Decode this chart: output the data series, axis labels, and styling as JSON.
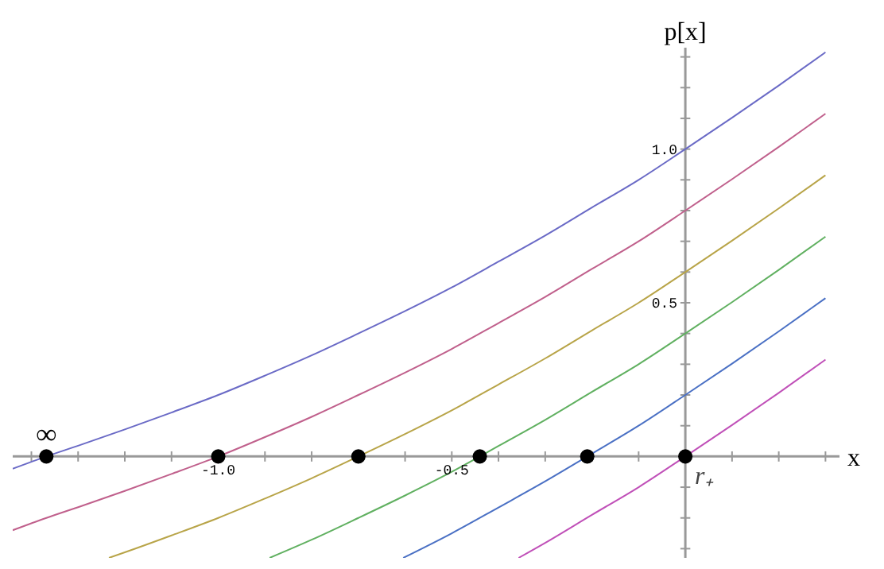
{
  "chart_data": {
    "type": "line",
    "xlabel": "x",
    "ylabel": "p[x]",
    "xlim": [
      -1.44,
      0.33
    ],
    "ylim": [
      -0.33,
      1.33
    ],
    "xticks": [
      {
        "value": -1.4,
        "label": null
      },
      {
        "value": -1.3,
        "label": null
      },
      {
        "value": -1.2,
        "label": null
      },
      {
        "value": -1.1,
        "label": null
      },
      {
        "value": -1.0,
        "label": "-1.0"
      },
      {
        "value": -0.9,
        "label": null
      },
      {
        "value": -0.8,
        "label": null
      },
      {
        "value": -0.7,
        "label": null
      },
      {
        "value": -0.6,
        "label": null
      },
      {
        "value": -0.5,
        "label": "-0.5"
      },
      {
        "value": -0.4,
        "label": null
      },
      {
        "value": -0.3,
        "label": null
      },
      {
        "value": -0.2,
        "label": null
      },
      {
        "value": -0.1,
        "label": null
      },
      {
        "value": 0.1,
        "label": null
      },
      {
        "value": 0.2,
        "label": null
      },
      {
        "value": 0.3,
        "label": null
      }
    ],
    "yticks": [
      {
        "value": -0.3,
        "label": null
      },
      {
        "value": -0.2,
        "label": null
      },
      {
        "value": -0.1,
        "label": null
      },
      {
        "value": 0.1,
        "label": null
      },
      {
        "value": 0.2,
        "label": null
      },
      {
        "value": 0.3,
        "label": null
      },
      {
        "value": 0.4,
        "label": null
      },
      {
        "value": 0.5,
        "label": "0.5"
      },
      {
        "value": 0.6,
        "label": null
      },
      {
        "value": 0.7,
        "label": null
      },
      {
        "value": 0.8,
        "label": null
      },
      {
        "value": 0.9,
        "label": null
      },
      {
        "value": 1.0,
        "label": "1.0"
      },
      {
        "value": 1.1,
        "label": null
      },
      {
        "value": 1.2,
        "label": null
      },
      {
        "value": 1.3,
        "label": null
      }
    ],
    "marker": "none",
    "series": [
      {
        "color": "#6a6ac6",
        "x": [
          -1.44,
          -1.368,
          -1.3,
          -1.2,
          -1.1,
          -1.0,
          -0.9,
          -0.8,
          -0.7,
          -0.6,
          -0.5,
          -0.4,
          -0.3,
          -0.2,
          -0.1,
          0,
          0.1,
          0.2,
          0.3
        ],
        "values": [
          -0.04,
          0,
          0.035,
          0.088,
          0.143,
          0.2,
          0.263,
          0.329,
          0.4,
          0.473,
          0.55,
          0.634,
          0.719,
          0.81,
          0.9,
          1.0,
          1.102,
          1.207,
          1.315
        ]
      },
      {
        "color": "#c0608c",
        "x": [
          -1.44,
          -1.368,
          -1.3,
          -1.2,
          -1.1,
          -1.0,
          -0.9,
          -0.8,
          -0.7,
          -0.6,
          -0.5,
          -0.4,
          -0.3,
          -0.2,
          -0.1,
          0,
          0.1,
          0.2,
          0.3
        ],
        "values": [
          -0.24,
          -0.2,
          -0.165,
          -0.112,
          -0.057,
          0,
          0.063,
          0.129,
          0.2,
          0.273,
          0.35,
          0.434,
          0.519,
          0.61,
          0.7,
          0.8,
          0.902,
          1.007,
          1.115
        ]
      },
      {
        "color": "#b8a448",
        "x": [
          -1.234,
          -1.2,
          -1.1,
          -1.0,
          -0.9,
          -0.8,
          -0.7,
          -0.6,
          -0.5,
          -0.4,
          -0.3,
          -0.2,
          -0.1,
          0,
          0.1,
          0.2,
          0.3
        ],
        "values": [
          -0.33,
          -0.312,
          -0.257,
          -0.2,
          -0.137,
          -0.071,
          0,
          0.073,
          0.15,
          0.234,
          0.319,
          0.41,
          0.5,
          0.6,
          0.702,
          0.807,
          0.915
        ]
      },
      {
        "color": "#60b060",
        "x": [
          -0.89,
          -0.8,
          -0.7,
          -0.6,
          -0.5,
          -0.44,
          -0.4,
          -0.3,
          -0.2,
          -0.1,
          0,
          0.1,
          0.2,
          0.3
        ],
        "values": [
          -0.33,
          -0.271,
          -0.2,
          -0.127,
          -0.05,
          0,
          0.034,
          0.119,
          0.21,
          0.3,
          0.4,
          0.502,
          0.607,
          0.715
        ]
      },
      {
        "color": "#4a70c4",
        "x": [
          -0.604,
          -0.5,
          -0.4,
          -0.3,
          -0.21,
          -0.1,
          0,
          0.1,
          0.2,
          0.3
        ],
        "values": [
          -0.33,
          -0.25,
          -0.166,
          -0.081,
          0,
          0.1,
          0.2,
          0.302,
          0.407,
          0.515
        ]
      },
      {
        "color": "#c050b8",
        "x": [
          -0.357,
          -0.3,
          -0.2,
          -0.1,
          0,
          0.1,
          0.2,
          0.3
        ],
        "values": [
          -0.33,
          -0.281,
          -0.19,
          -0.1,
          0,
          0.102,
          0.207,
          0.315
        ]
      },
      {
        "type": "scatter",
        "marker": "circle",
        "color": "#000000",
        "x": [
          -1.368,
          -1.0,
          -0.7,
          -0.44,
          -0.21,
          0
        ],
        "values": [
          0,
          0,
          0,
          0,
          0,
          0
        ]
      }
    ],
    "annotations": [
      {
        "text": "∞",
        "x": -1.368,
        "y": 0
      },
      {
        "text": "r₊",
        "x": 0,
        "y": 0
      }
    ]
  }
}
